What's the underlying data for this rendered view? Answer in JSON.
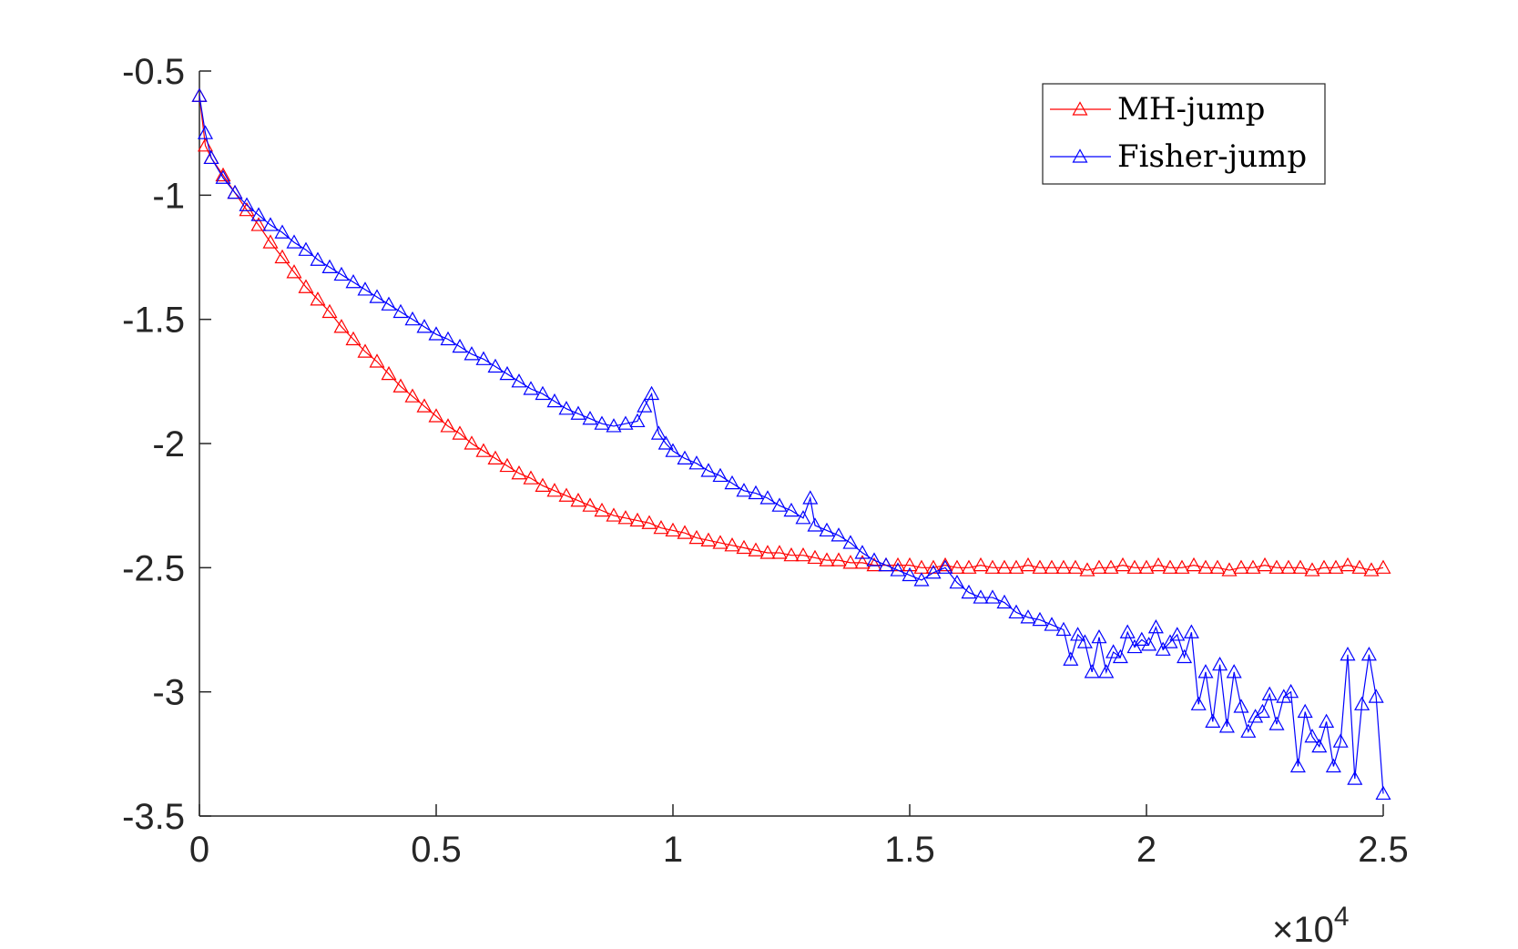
{
  "chart_data": {
    "type": "line",
    "title": "",
    "xlabel": "",
    "ylabel": "",
    "xlim": [
      0,
      25000
    ],
    "ylim": [
      -3.5,
      -0.5
    ],
    "x_ticks": [
      0,
      5000,
      10000,
      15000,
      20000,
      25000
    ],
    "x_tick_labels": [
      "0",
      "0.5",
      "1",
      "1.5",
      "2",
      "2.5"
    ],
    "x_exponent_prefix": "×10",
    "x_exponent_power": "4",
    "y_ticks": [
      -0.5,
      -1,
      -1.5,
      -2,
      -2.5,
      -3,
      -3.5
    ],
    "y_tick_labels": [
      "-0.5",
      "-1",
      "-1.5",
      "-2",
      "-2.5",
      "-3",
      "-3.5"
    ],
    "grid": false,
    "legend_position": "top-right",
    "marker": "triangle",
    "series": [
      {
        "name": "MH-jump",
        "color": "#ff0000",
        "x": [
          0,
          125,
          250,
          500,
          750,
          1000,
          1250,
          1500,
          1750,
          2000,
          2250,
          2500,
          2750,
          3000,
          3250,
          3500,
          3750,
          4000,
          4250,
          4500,
          4750,
          5000,
          5250,
          5500,
          5750,
          6000,
          6250,
          6500,
          6750,
          7000,
          7250,
          7500,
          7750,
          8000,
          8250,
          8500,
          8750,
          9000,
          9250,
          9500,
          9750,
          10000,
          10250,
          10500,
          10750,
          11000,
          11250,
          11500,
          11750,
          12000,
          12250,
          12500,
          12750,
          13000,
          13250,
          13500,
          13750,
          14000,
          14250,
          14500,
          14750,
          15000,
          15250,
          15500,
          15750,
          16000,
          16250,
          16500,
          16750,
          17000,
          17250,
          17500,
          17750,
          18000,
          18250,
          18500,
          18750,
          19000,
          19250,
          19500,
          19750,
          20000,
          20250,
          20500,
          20750,
          21000,
          21250,
          21500,
          21750,
          22000,
          22250,
          22500,
          22750,
          23000,
          23250,
          23500,
          23750,
          24000,
          24250,
          24500,
          24750,
          25000
        ],
        "y": [
          -0.6,
          -0.8,
          -0.85,
          -0.92,
          -0.99,
          -1.06,
          -1.12,
          -1.19,
          -1.25,
          -1.31,
          -1.37,
          -1.42,
          -1.47,
          -1.53,
          -1.58,
          -1.63,
          -1.67,
          -1.72,
          -1.77,
          -1.81,
          -1.85,
          -1.89,
          -1.93,
          -1.96,
          -2.0,
          -2.03,
          -2.06,
          -2.09,
          -2.12,
          -2.14,
          -2.17,
          -2.19,
          -2.21,
          -2.23,
          -2.25,
          -2.27,
          -2.29,
          -2.3,
          -2.31,
          -2.32,
          -2.34,
          -2.35,
          -2.36,
          -2.38,
          -2.39,
          -2.4,
          -2.41,
          -2.42,
          -2.43,
          -2.44,
          -2.44,
          -2.45,
          -2.45,
          -2.46,
          -2.47,
          -2.47,
          -2.48,
          -2.48,
          -2.49,
          -2.49,
          -2.49,
          -2.49,
          -2.5,
          -2.5,
          -2.49,
          -2.5,
          -2.5,
          -2.49,
          -2.5,
          -2.5,
          -2.5,
          -2.49,
          -2.5,
          -2.5,
          -2.5,
          -2.5,
          -2.51,
          -2.5,
          -2.5,
          -2.49,
          -2.5,
          -2.5,
          -2.49,
          -2.5,
          -2.5,
          -2.49,
          -2.5,
          -2.5,
          -2.51,
          -2.5,
          -2.5,
          -2.49,
          -2.5,
          -2.5,
          -2.5,
          -2.51,
          -2.5,
          -2.5,
          -2.49,
          -2.5,
          -2.51,
          -2.5
        ]
      },
      {
        "name": "Fisher-jump",
        "color": "#0000ff",
        "x": [
          0,
          125,
          250,
          500,
          750,
          1000,
          1250,
          1500,
          1750,
          2000,
          2250,
          2500,
          2750,
          3000,
          3250,
          3500,
          3750,
          4000,
          4250,
          4500,
          4750,
          5000,
          5250,
          5500,
          5750,
          6000,
          6250,
          6500,
          6750,
          7000,
          7250,
          7500,
          7750,
          8000,
          8250,
          8500,
          8750,
          9000,
          9250,
          9400,
          9550,
          9700,
          9850,
          10000,
          10250,
          10500,
          10750,
          11000,
          11250,
          11500,
          11750,
          12000,
          12250,
          12500,
          12750,
          12900,
          13000,
          13250,
          13500,
          13750,
          14000,
          14250,
          14500,
          14750,
          15000,
          15250,
          15500,
          15750,
          16000,
          16250,
          16500,
          16750,
          17000,
          17250,
          17500,
          17750,
          18000,
          18250,
          18400,
          18550,
          18700,
          18850,
          19000,
          19150,
          19300,
          19450,
          19600,
          19750,
          19900,
          20050,
          20200,
          20350,
          20500,
          20650,
          20800,
          20950,
          21100,
          21250,
          21400,
          21550,
          21700,
          21850,
          22000,
          22150,
          22300,
          22450,
          22600,
          22750,
          22900,
          23050,
          23200,
          23350,
          23500,
          23650,
          23800,
          23950,
          24100,
          24250,
          24400,
          24550,
          24700,
          24850,
          25000
        ],
        "y": [
          -0.6,
          -0.75,
          -0.85,
          -0.93,
          -0.99,
          -1.04,
          -1.08,
          -1.12,
          -1.15,
          -1.19,
          -1.22,
          -1.26,
          -1.29,
          -1.32,
          -1.35,
          -1.38,
          -1.41,
          -1.44,
          -1.47,
          -1.5,
          -1.53,
          -1.56,
          -1.58,
          -1.61,
          -1.64,
          -1.66,
          -1.69,
          -1.72,
          -1.75,
          -1.78,
          -1.8,
          -1.83,
          -1.86,
          -1.88,
          -1.9,
          -1.92,
          -1.93,
          -1.92,
          -1.91,
          -1.85,
          -1.8,
          -1.96,
          -2.0,
          -2.03,
          -2.06,
          -2.08,
          -2.11,
          -2.13,
          -2.16,
          -2.19,
          -2.2,
          -2.22,
          -2.25,
          -2.27,
          -2.3,
          -2.22,
          -2.33,
          -2.35,
          -2.37,
          -2.4,
          -2.44,
          -2.47,
          -2.49,
          -2.51,
          -2.53,
          -2.55,
          -2.52,
          -2.5,
          -2.56,
          -2.6,
          -2.62,
          -2.62,
          -2.64,
          -2.68,
          -2.7,
          -2.71,
          -2.73,
          -2.75,
          -2.87,
          -2.77,
          -2.8,
          -2.92,
          -2.78,
          -2.92,
          -2.84,
          -2.86,
          -2.76,
          -2.82,
          -2.79,
          -2.81,
          -2.74,
          -2.83,
          -2.8,
          -2.77,
          -2.86,
          -2.76,
          -3.05,
          -2.92,
          -3.12,
          -2.89,
          -3.14,
          -2.92,
          -3.06,
          -3.16,
          -3.1,
          -3.08,
          -3.01,
          -3.13,
          -3.02,
          -3.0,
          -3.3,
          -3.08,
          -3.18,
          -3.22,
          -3.12,
          -3.3,
          -3.2,
          -2.85,
          -3.35,
          -3.05,
          -2.85,
          -3.02,
          -3.41
        ]
      }
    ]
  }
}
